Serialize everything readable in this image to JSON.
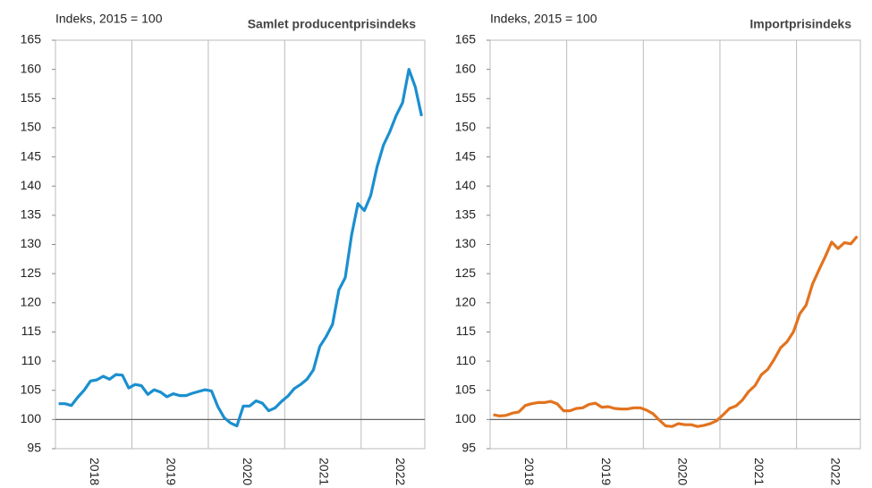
{
  "chart_data": [
    {
      "type": "line",
      "title": "Samlet producentprisindeks",
      "y_label": "Indeks, 2015 = 100",
      "categories": [
        null,
        null,
        null,
        null,
        null,
        null,
        "2018",
        null,
        null,
        null,
        null,
        null,
        null,
        null,
        null,
        null,
        null,
        null,
        "2019",
        null,
        null,
        null,
        null,
        null,
        null,
        null,
        null,
        null,
        null,
        null,
        "2020",
        null,
        null,
        null,
        null,
        null,
        null,
        null,
        null,
        null,
        null,
        null,
        "2021",
        null,
        null,
        null,
        null,
        null,
        null,
        null,
        null,
        null,
        null,
        null,
        "2022",
        null,
        null,
        null
      ],
      "series": [
        {
          "name": "Samlet producentprisindeks",
          "color": "#1b8fcf",
          "values": [
            102.7,
            102.7,
            102.4,
            103.8,
            105,
            106.6,
            106.8,
            107.4,
            106.9,
            107.7,
            107.6,
            105.4,
            106,
            105.8,
            104.3,
            105.1,
            104.7,
            103.9,
            104.4,
            104.1,
            104.1,
            104.5,
            104.8,
            105.1,
            104.9,
            102.2,
            100.3,
            99.4,
            98.9,
            102.3,
            102.3,
            103.2,
            102.8,
            101.5,
            102,
            103.1,
            104,
            105.3,
            106,
            106.9,
            108.5,
            112.5,
            114.2,
            116.3,
            122.2,
            124.3,
            131.6,
            137,
            135.8,
            138.4,
            143.3,
            147,
            149.3,
            152.1,
            154.3,
            160,
            157,
            152
          ]
        }
      ],
      "ylim": [
        95,
        165
      ],
      "yticks": [
        95,
        100,
        105,
        110,
        115,
        120,
        125,
        130,
        135,
        140,
        145,
        150,
        155,
        160,
        165
      ],
      "baseline": 100
    },
    {
      "type": "line",
      "title": "Importprisindeks",
      "y_label": "Indeks, 2015 = 100",
      "categories": [
        null,
        null,
        null,
        null,
        null,
        null,
        "2018",
        null,
        null,
        null,
        null,
        null,
        null,
        null,
        null,
        null,
        null,
        null,
        "2019",
        null,
        null,
        null,
        null,
        null,
        null,
        null,
        null,
        null,
        null,
        null,
        "2020",
        null,
        null,
        null,
        null,
        null,
        null,
        null,
        null,
        null,
        null,
        null,
        "2021",
        null,
        null,
        null,
        null,
        null,
        null,
        null,
        null,
        null,
        null,
        null,
        "2022",
        null,
        null,
        null
      ],
      "series": [
        {
          "name": "Importprisindeks",
          "color": "#e2731f",
          "values": [
            100.8,
            100.6,
            100.7,
            101.1,
            101.3,
            102.4,
            102.7,
            102.9,
            102.9,
            103.1,
            102.7,
            101.5,
            101.5,
            101.9,
            102,
            102.6,
            102.8,
            102.1,
            102.2,
            101.9,
            101.8,
            101.8,
            102,
            102,
            101.6,
            101,
            99.9,
            98.9,
            98.8,
            99.3,
            99.1,
            99.1,
            98.8,
            99,
            99.3,
            99.8,
            100.8,
            101.9,
            102.3,
            103.3,
            104.8,
            105.8,
            107.7,
            108.6,
            110.3,
            112.3,
            113.3,
            115,
            118.1,
            119.6,
            123.2,
            125.6,
            127.9,
            130.4,
            129.3,
            130.3,
            130.1,
            131.4
          ]
        }
      ],
      "ylim": [
        95,
        165
      ],
      "yticks": [
        95,
        100,
        105,
        110,
        115,
        120,
        125,
        130,
        135,
        140,
        145,
        150,
        155,
        160,
        165
      ],
      "baseline": 100
    }
  ]
}
